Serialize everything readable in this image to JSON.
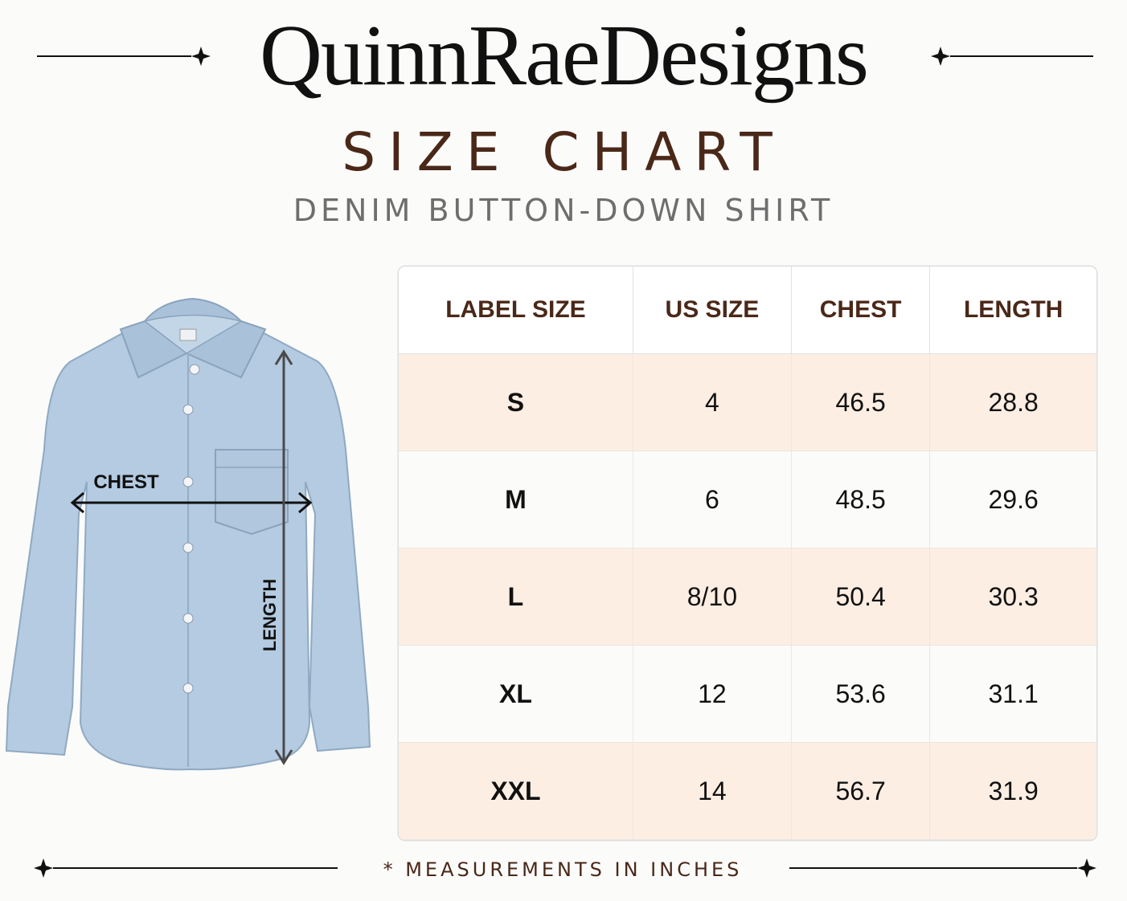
{
  "header": {
    "brand": "QuinnRaeDesigns",
    "title": "SIZE CHART",
    "subtitle": "DENIM BUTTON-DOWN SHIRT"
  },
  "illustration": {
    "chest_label": "CHEST",
    "length_label": "LENGTH"
  },
  "table": {
    "headers": [
      "LABEL SIZE",
      "US SIZE",
      "CHEST",
      "LENGTH"
    ],
    "rows": [
      [
        "S",
        "4",
        "46.5",
        "28.8"
      ],
      [
        "M",
        "6",
        "48.5",
        "29.6"
      ],
      [
        "L",
        "8/10",
        "50.4",
        "30.3"
      ],
      [
        "XL",
        "12",
        "53.6",
        "31.1"
      ],
      [
        "XXL",
        "14",
        "56.7",
        "31.9"
      ]
    ]
  },
  "footer": {
    "note": "* MEASUREMENTS IN INCHES"
  }
}
